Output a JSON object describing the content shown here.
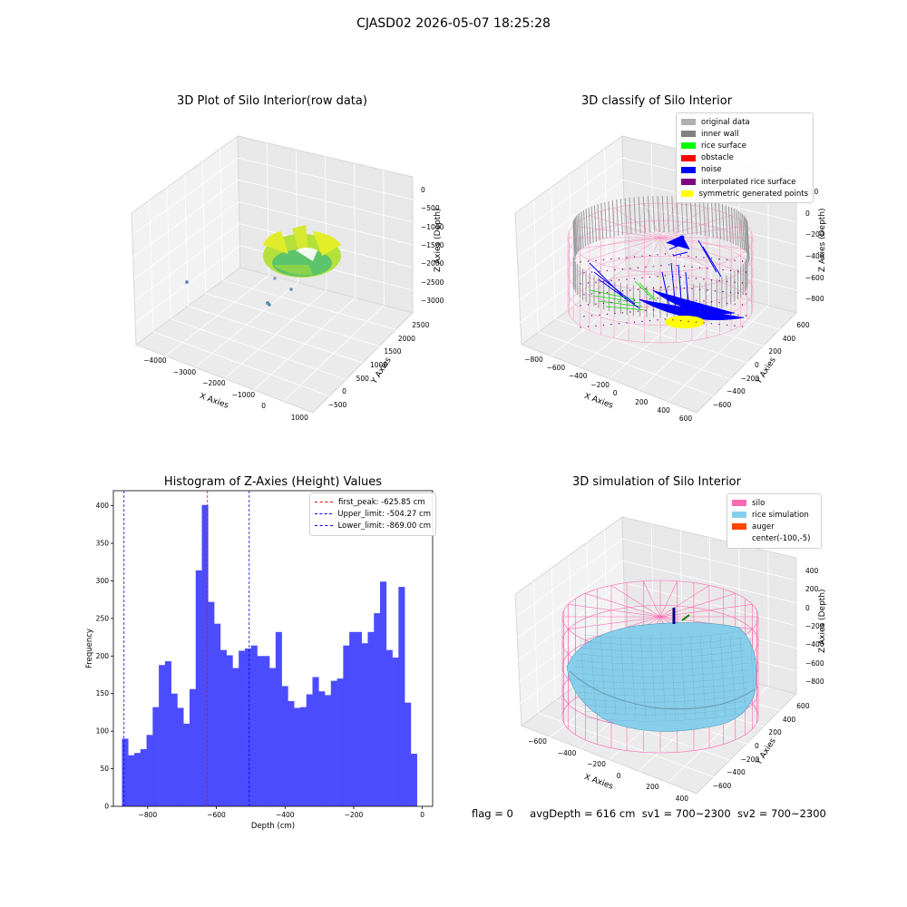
{
  "suptitle": "CJASD02 2026-05-07 18:25:28",
  "footer": {
    "flag": "flag = 0",
    "avg": "avgDepth = 616 cm",
    "sv1": "sv1 = 700~2300",
    "sv2": "sv2 = 700~2300"
  },
  "colors": {
    "silo": "#ff69b4",
    "rice_simulation": "#87ceeb",
    "auger": "#ff4500",
    "original": "#b0b0b0",
    "inner_wall": "#808080",
    "rice_surface": "#00ff00",
    "obstacle": "#ff0000",
    "noise": "#0000ff",
    "interpolated": "#800080",
    "symmetric": "#ffff00",
    "hist_bar": "#4c4cff"
  },
  "chart_data": [
    {
      "type": "scatter",
      "subtype": "3d",
      "title": "3D Plot of Silo Interior(row data)",
      "xlabel": "X Axies",
      "ylabel": "Y Axies",
      "zlabel": "Z Axies (Depth)",
      "x_ticks": [
        "−4000",
        "−3000",
        "−2000",
        "−1000",
        "0",
        "1000"
      ],
      "y_ticks": [
        "−500",
        "0",
        "500",
        "1000",
        "1500",
        "2000",
        "2500"
      ],
      "z_ticks": [
        "0",
        "−500",
        "−1000",
        "−1500",
        "−2000",
        "−2500",
        "−3000"
      ],
      "xlim": [
        -4000,
        1000
      ],
      "ylim": [
        -500,
        2500
      ],
      "zlim": [
        -3000,
        0
      ]
    },
    {
      "type": "scatter",
      "subtype": "3d",
      "title": "3D classify of Silo Interior",
      "xlabel": "X Axies",
      "ylabel": "Y Axies",
      "zlabel": "Z Axies (Depth)",
      "x_ticks": [
        "−800",
        "−600",
        "−400",
        "−200",
        "0",
        "200",
        "400",
        "600"
      ],
      "y_ticks": [
        "−600",
        "−400",
        "−200",
        "0",
        "200",
        "400",
        "600"
      ],
      "z_ticks": [
        "200",
        "0",
        "−200",
        "−400",
        "−600",
        "−800"
      ],
      "xlim": [
        -800,
        600
      ],
      "ylim": [
        -600,
        600
      ],
      "zlim": [
        -800,
        200
      ],
      "legend": [
        {
          "label": "original data",
          "color": "#b0b0b0"
        },
        {
          "label": "inner wall",
          "color": "#808080"
        },
        {
          "label": "rice surface",
          "color": "#00ff00"
        },
        {
          "label": "obstacle",
          "color": "#ff0000"
        },
        {
          "label": "noise",
          "color": "#0000ff"
        },
        {
          "label": "interpolated rice surface",
          "color": "#800080"
        },
        {
          "label": "symmetric generated points",
          "color": "#ffff00"
        }
      ]
    },
    {
      "type": "bar",
      "subtype": "histogram",
      "title": "Histogram of Z-Axies (Height) Values",
      "xlabel": "Depth (cm)",
      "ylabel": "Frequency",
      "xlim": [
        -900,
        30
      ],
      "ylim": [
        0,
        420
      ],
      "x_ticks": [
        -800,
        -600,
        -400,
        -200,
        0
      ],
      "x_tick_labels": [
        "−800",
        "−600",
        "−400",
        "−200",
        "0"
      ],
      "y_ticks": [
        0,
        50,
        100,
        150,
        200,
        250,
        300,
        350,
        400
      ],
      "y_tick_labels": [
        "0",
        "50",
        "100",
        "150",
        "200",
        "250",
        "300",
        "350",
        "400"
      ],
      "bin_start": -875,
      "bin_width": 17.9,
      "values": [
        90,
        68,
        71,
        76,
        95,
        132,
        188,
        193,
        150,
        131,
        110,
        156,
        314,
        401,
        272,
        243,
        208,
        201,
        184,
        207,
        210,
        214,
        200,
        200,
        184,
        232,
        160,
        140,
        131,
        132,
        149,
        172,
        153,
        148,
        167,
        170,
        214,
        232,
        232,
        217,
        232,
        257,
        299,
        208,
        198,
        292,
        138,
        70
      ],
      "legend_placement": "upper-right",
      "vlines": [
        {
          "label": "first_peak: -625.85 cm",
          "x": -625.85,
          "color": "#ff0000"
        },
        {
          "label": "Upper_limit: -504.27 cm",
          "x": -504.27,
          "color": "#0000ff"
        },
        {
          "label": "Lower_limit: -869.00 cm",
          "x": -869.0,
          "color": "#0000ff"
        }
      ]
    },
    {
      "type": "scatter",
      "subtype": "3d-surface",
      "title": "3D simulation of Silo Interior",
      "xlabel": "X Axies",
      "ylabel": "Y Axies",
      "zlabel": "Z Axies (Depth)",
      "x_ticks": [
        "−600",
        "−400",
        "−200",
        "0",
        "200",
        "400"
      ],
      "y_ticks": [
        "−600",
        "−400",
        "−200",
        "0",
        "200",
        "400",
        "600"
      ],
      "z_ticks": [
        "400",
        "200",
        "0",
        "−200",
        "−400",
        "−600",
        "−800"
      ],
      "legend": [
        {
          "label": "silo",
          "color": "#ff69b4"
        },
        {
          "label": "rice simulation",
          "color": "#87ceeb"
        },
        {
          "label": "auger",
          "color": "#ff4500"
        },
        {
          "label": "center(-100,-5)",
          "color": ""
        }
      ]
    }
  ]
}
